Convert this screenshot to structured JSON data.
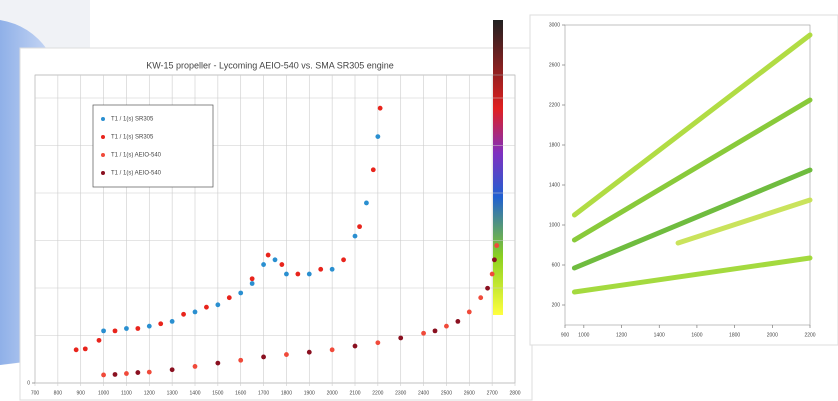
{
  "chart_data": [
    {
      "type": "scatter",
      "title": "KW-15 propeller - Lycoming AEIO-540 vs. SMA SR305 engine",
      "xlim": [
        700,
        2800
      ],
      "xticks": [
        700,
        800,
        900,
        1000,
        1100,
        1200,
        1300,
        1400,
        1500,
        1600,
        1700,
        1800,
        1900,
        2000,
        2100,
        2200,
        2300,
        2400,
        2500,
        2600,
        2700,
        2800
      ],
      "ylim": [
        0,
        6.5
      ],
      "yticks": [
        0
      ],
      "grid": true,
      "legend": "upper left",
      "series": [
        {
          "name": "T1 / 1(s) SR305",
          "color": "#2a8fd0",
          "x": [
            1000,
            1100,
            1200,
            1300,
            1400,
            1500,
            1600,
            1650,
            1700,
            1750,
            1800,
            1900,
            2000,
            2100,
            2150,
            2200
          ],
          "values": [
            1.1,
            1.15,
            1.2,
            1.3,
            1.5,
            1.65,
            1.9,
            2.1,
            2.5,
            2.6,
            2.3,
            2.3,
            2.4,
            3.1,
            3.8,
            5.2
          ]
        },
        {
          "name": "T1 / 1(s) SR305",
          "color": "#e8241c",
          "x": [
            880,
            920,
            980,
            1050,
            1150,
            1250,
            1350,
            1450,
            1550,
            1650,
            1720,
            1780,
            1850,
            1950,
            2050,
            2120,
            2180,
            2210
          ],
          "values": [
            0.7,
            0.72,
            0.9,
            1.1,
            1.15,
            1.25,
            1.45,
            1.6,
            1.8,
            2.2,
            2.7,
            2.5,
            2.3,
            2.4,
            2.6,
            3.3,
            4.5,
            5.8
          ]
        },
        {
          "name": "T1 / 1(s) AEIO-540",
          "color": "#f04a3a",
          "x": [
            1000,
            1100,
            1200,
            1400,
            1600,
            1800,
            2000,
            2200,
            2400,
            2500,
            2600,
            2650,
            2700,
            2720
          ],
          "values": [
            0.17,
            0.2,
            0.23,
            0.35,
            0.48,
            0.6,
            0.7,
            0.85,
            1.05,
            1.2,
            1.5,
            1.8,
            2.3,
            2.9
          ]
        },
        {
          "name": "T1 / 1(s) AEIO-540",
          "color": "#8a1020",
          "x": [
            1050,
            1150,
            1300,
            1500,
            1700,
            1900,
            2100,
            2300,
            2450,
            2550,
            2680,
            2710
          ],
          "values": [
            0.18,
            0.22,
            0.28,
            0.42,
            0.55,
            0.65,
            0.78,
            0.95,
            1.1,
            1.3,
            2.0,
            2.6
          ]
        }
      ]
    },
    {
      "type": "line",
      "xlim": [
        900,
        2200
      ],
      "xticks": [
        900,
        1000,
        1200,
        1400,
        1600,
        1800,
        2000,
        2200
      ],
      "ylim": [
        0,
        3000
      ],
      "yticks": [
        200,
        600,
        1000,
        1400,
        1800,
        2200,
        2600,
        3000
      ],
      "series": [
        {
          "color": "#9ad62a",
          "x": [
            950,
            2200
          ],
          "values": [
            330,
            670
          ]
        },
        {
          "color": "#5fb52a",
          "x": [
            950,
            2200
          ],
          "values": [
            570,
            1550
          ]
        },
        {
          "color": "#7cc425",
          "x": [
            950,
            2200
          ],
          "values": [
            850,
            2250
          ]
        },
        {
          "color": "#a8d830",
          "x": [
            950,
            2200
          ],
          "values": [
            1100,
            2900
          ]
        },
        {
          "color": "#c4e04a",
          "x": [
            1500,
            2200
          ],
          "values": [
            820,
            1250
          ]
        }
      ]
    }
  ]
}
